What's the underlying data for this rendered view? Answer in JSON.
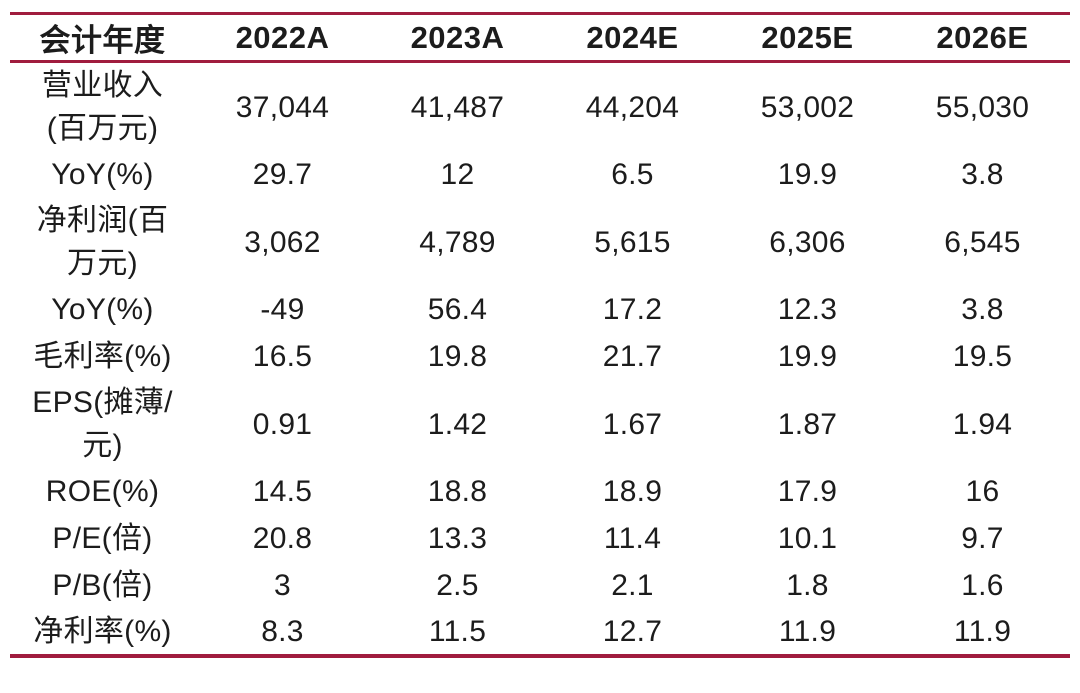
{
  "colors": {
    "rule": "#A01C3E",
    "text": "#1C1C1C",
    "background": "#FFFFFF"
  },
  "table": {
    "corner_label": "会计年度",
    "year_columns": [
      "2022A",
      "2023A",
      "2024E",
      "2025E",
      "2026E"
    ],
    "rows": [
      {
        "label": "营业收入(百万元)",
        "values": [
          "37,044",
          "41,487",
          "44,204",
          "53,002",
          "55,030"
        ]
      },
      {
        "label": "YoY(%)",
        "values": [
          "29.7",
          "12",
          "6.5",
          "19.9",
          "3.8"
        ]
      },
      {
        "label": "净利润(百万元)",
        "values": [
          "3,062",
          "4,789",
          "5,615",
          "6,306",
          "6,545"
        ]
      },
      {
        "label": "YoY(%)",
        "values": [
          "-49",
          "56.4",
          "17.2",
          "12.3",
          "3.8"
        ]
      },
      {
        "label": "毛利率(%)",
        "values": [
          "16.5",
          "19.8",
          "21.7",
          "19.9",
          "19.5"
        ]
      },
      {
        "label": "EPS(摊薄/元)",
        "values": [
          "0.91",
          "1.42",
          "1.67",
          "1.87",
          "1.94"
        ]
      },
      {
        "label": "ROE(%)",
        "values": [
          "14.5",
          "18.8",
          "18.9",
          "17.9",
          "16"
        ]
      },
      {
        "label": "P/E(倍)",
        "values": [
          "20.8",
          "13.3",
          "11.4",
          "10.1",
          "9.7"
        ]
      },
      {
        "label": "P/B(倍)",
        "values": [
          "3",
          "2.5",
          "2.1",
          "1.8",
          "1.6"
        ]
      },
      {
        "label": "净利率(%)",
        "values": [
          "8.3",
          "11.5",
          "12.7",
          "11.9",
          "11.9"
        ]
      }
    ]
  }
}
